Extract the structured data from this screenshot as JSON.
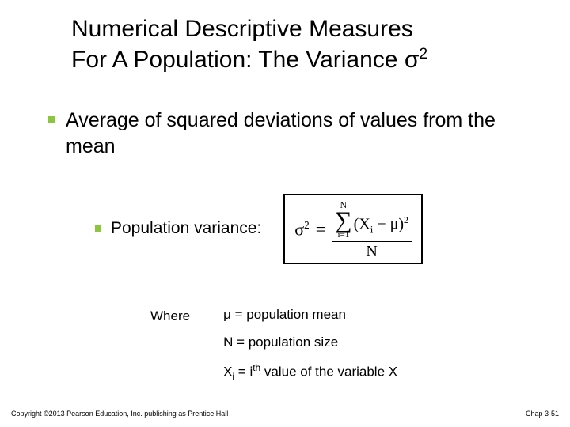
{
  "title": {
    "line1": "Numerical Descriptive Measures",
    "line2_pre": "For A Population:  The Variance σ",
    "line2_sup": "2"
  },
  "bullet_main": "Average of squared deviations of values from the mean",
  "bullet_sub": "Population variance:",
  "formula": {
    "lhs_base": "σ",
    "lhs_sup": "2",
    "eq": "=",
    "sum_top": "N",
    "sum_bottom": "i=1",
    "paren_open": "(",
    "x_base": "X",
    "x_sub": "i",
    "minus": "−",
    "mu": "μ",
    "paren_close": ")",
    "term_sup": "2",
    "den": "N"
  },
  "where_label": "Where",
  "defs": {
    "mu": "μ  = population mean",
    "n": "N = population size",
    "xi_pre": "X",
    "xi_sub": "i",
    "xi_mid": " = i",
    "xi_sup": "th",
    "xi_post": " value of the variable X"
  },
  "footer": {
    "copyright": "Copyright ©2013 Pearson Education, Inc. publishing as Prentice Hall",
    "chap": "Chap 3-51"
  },
  "colors": {
    "bullet": "#8cc63f",
    "text": "#000000",
    "bg": "#ffffff"
  }
}
